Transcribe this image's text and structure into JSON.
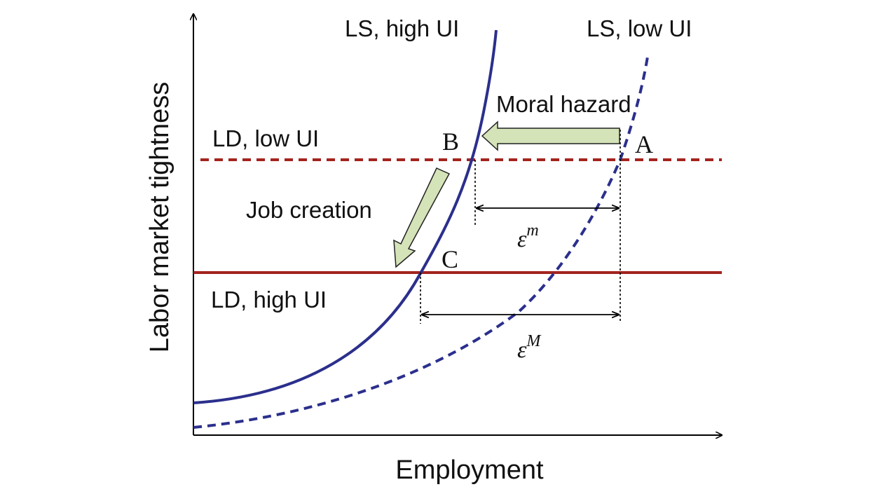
{
  "axes": {
    "x_label": "Employment",
    "y_label": "Labor market tightness"
  },
  "curves": {
    "ls_high": {
      "label": "LS, high UI",
      "color": "#2b2f8c",
      "style": "solid"
    },
    "ls_low": {
      "label": "LS, low UI",
      "color": "#2b2f8c",
      "style": "dashed"
    },
    "ld_low": {
      "label": "LD, low UI",
      "color": "#a3231f",
      "style": "dashed"
    },
    "ld_high": {
      "label": "LD, high UI",
      "color": "#a3231f",
      "style": "solid"
    }
  },
  "points": {
    "a": "A",
    "b": "B",
    "c": "C"
  },
  "annotations": {
    "moral_hazard": "Moral hazard",
    "job_creation": "Job creation",
    "arrow_fill": "#d4e3b8",
    "arrow_stroke": "#222222"
  },
  "elasticities": {
    "micro": {
      "base": "ε",
      "sup": "m"
    },
    "macro": {
      "base": "ε",
      "sup": "M"
    }
  }
}
